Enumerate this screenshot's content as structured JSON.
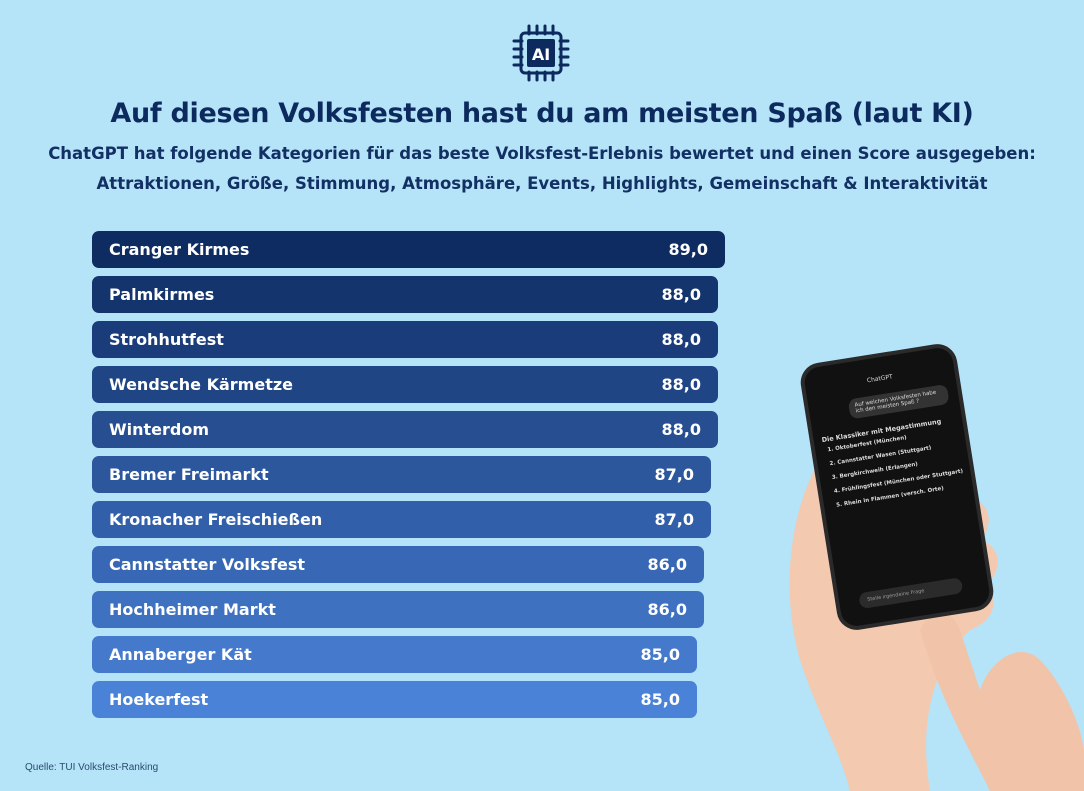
{
  "header": {
    "icon": "ai-chip-icon",
    "icon_text": "AI",
    "title": "Auf diesen Volksfesten hast du am meisten Spaß (laut KI)",
    "subtitle_line1": "ChatGPT hat folgende Kategorien für das beste Volksfest-Erlebnis bewertet und einen Score ausgegeben:",
    "subtitle_line2": "Attraktionen, Größe, Stimmung, Atmosphäre, Events, Highlights, Gemeinschaft & Interaktivität"
  },
  "chart_data": {
    "type": "bar",
    "orientation": "horizontal",
    "categories": [
      "Cranger Kirmes",
      "Palmkirmes",
      "Strohhutfest",
      "Wendsche Kärmetze",
      "Winterdom",
      "Bremer Freimarkt",
      "Kronacher Freischießen",
      "Cannstatter Volksfest",
      "Hochheimer Markt",
      "Annaberger Kät",
      "Hoekerfest"
    ],
    "values": [
      89.0,
      88.0,
      88.0,
      88.0,
      88.0,
      87.0,
      87.0,
      86.0,
      86.0,
      85.0,
      85.0
    ],
    "value_labels": [
      "89,0",
      "88,0",
      "88,0",
      "88,0",
      "88,0",
      "87,0",
      "87,0",
      "86,0",
      "86,0",
      "85,0",
      "85,0"
    ],
    "colors": {
      "first": "#0e2b62",
      "last": "#4a82d8"
    },
    "title": "",
    "xlabel": "",
    "ylabel": "",
    "grid": false
  },
  "phone": {
    "app_title": "ChatGPT",
    "question": "Auf welchen Volksfesten habe ich den meisten Spaß ?",
    "heading": "Die Klassiker mit Megastimmung",
    "items": [
      "Oktoberfest (München)",
      "Cannstatter Wasen (Stuttgart)",
      "Bergkirchweih (Erlangen)",
      "Frühlingsfest (München oder Stuttgart)",
      "Rhein in Flammen (versch. Orte)"
    ],
    "input_placeholder": "Stelle irgendeine Frage"
  },
  "source": "Quelle: TUI Volksfest-Ranking",
  "colors": {
    "background": "#b5e3f8",
    "title": "#0d2a5e"
  }
}
